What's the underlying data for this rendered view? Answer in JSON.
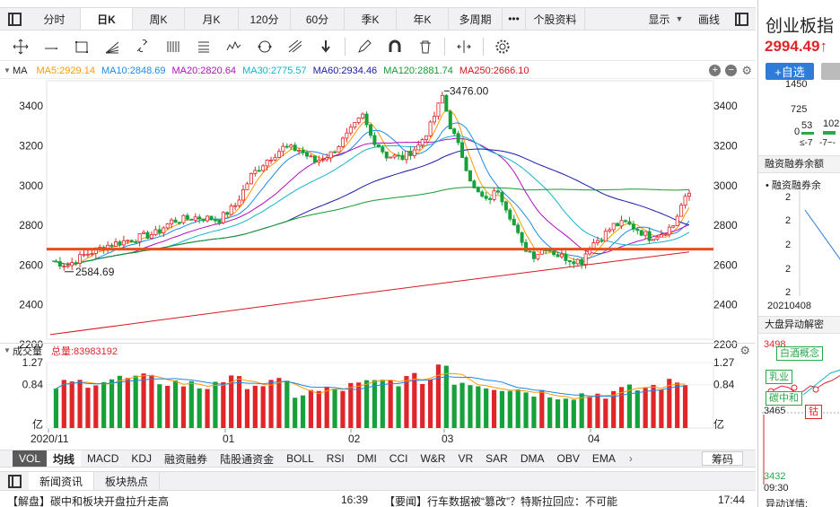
{
  "top_tabs": [
    {
      "label": "分时"
    },
    {
      "label": "日K",
      "active": true
    },
    {
      "label": "周K"
    },
    {
      "label": "月K"
    },
    {
      "label": "120分"
    },
    {
      "label": "60分"
    },
    {
      "label": "季K"
    },
    {
      "label": "年K"
    },
    {
      "label": "多周期"
    },
    {
      "label": "•••"
    },
    {
      "label": "个股资料"
    }
  ],
  "top_right": {
    "display_label": "显示",
    "draw_label": "画线"
  },
  "tools": [
    "crosshair-icon",
    "line-icon",
    "rect-icon",
    "fan-icon",
    "link-icon",
    "parallel-icon",
    "text-icon",
    "wave-icon",
    "circle-icon",
    "fib-icon",
    "arrow-down-icon",
    "pen-icon",
    "magnet-icon",
    "trash-icon",
    "split-icon",
    "settings-icon"
  ],
  "ma_legend": {
    "label": "MA",
    "items": [
      {
        "text": "MA5:2929.14",
        "color": "#ff9900"
      },
      {
        "text": "MA10:2848.69",
        "color": "#1e88e5"
      },
      {
        "text": "MA20:2820.64",
        "color": "#b010b8"
      },
      {
        "text": "MA30:2775.57",
        "color": "#16b4cc"
      },
      {
        "text": "MA60:2934.46",
        "color": "#1a1aa8"
      },
      {
        "text": "MA120:2881.74",
        "color": "#169c2e"
      },
      {
        "text": "MA250:2666.10",
        "color": "#d4181f"
      }
    ]
  },
  "price_axis": {
    "ticks": [
      "3400",
      "3200",
      "3000",
      "2800",
      "2600",
      "2400",
      "2200"
    ]
  },
  "annotations": {
    "high": "3476.00",
    "low": "2584.69"
  },
  "volume_legend": {
    "label": "成交量",
    "total": "总量:83983192"
  },
  "volume_axis": {
    "ticks": [
      "1.27",
      "0.84",
      "亿"
    ]
  },
  "x_axis": {
    "labels": [
      "2020/11",
      "01",
      "02",
      "03",
      "04"
    ]
  },
  "indicators": [
    "VOL",
    "均线",
    "MACD",
    "KDJ",
    "融资融券",
    "陆股通资金",
    "BOLL",
    "RSI",
    "DMI",
    "CCI",
    "W&R",
    "VR",
    "SAR",
    "DMA",
    "OBV",
    "EMA"
  ],
  "indicator_more": "›",
  "indicator_right": "筹码",
  "news_tabs": [
    "新闻资讯",
    "板块热点"
  ],
  "news": [
    {
      "text": "【解盘】碳中和板块开盘拉升走高",
      "time": "16:39"
    },
    {
      "text": "【要闻】行车数据被“篡改”？特斯拉回应：不可能",
      "time": "17:44"
    }
  ],
  "right_panel": {
    "title": "创业板指",
    "price": "2994.49↑",
    "add_button": "+自选",
    "fund_y": [
      "1450",
      "725",
      "0"
    ],
    "fund_vals": [
      "53",
      "102"
    ],
    "fund_ranges": [
      "≤-7",
      "-7~-"
    ],
    "margin_title": "融资融券余额",
    "margin_legend": "融资融券余",
    "margin_ticks": [
      "2",
      "2",
      "2",
      "2",
      "2"
    ],
    "margin_date": "20210408",
    "anomaly_title": "大盘异动解密",
    "anomaly_high": "3498",
    "anomaly_mid": "3465",
    "anomaly_low": "3432",
    "anomaly_time": "09:30",
    "badges": [
      {
        "text": "白酒概念",
        "color": "green"
      },
      {
        "text": "乳业",
        "color": "green"
      },
      {
        "text": "碳中和",
        "color": "green"
      },
      {
        "text": "钴",
        "color": "red"
      }
    ],
    "detail_title": "异动详情:"
  },
  "chart_data": {
    "type": "candlestick",
    "ylim": [
      2200,
      3500
    ],
    "support_line": 2680,
    "x_ticks": [
      "2020/11",
      "01",
      "02",
      "03",
      "04"
    ],
    "ma_series_last": {
      "MA5": 2929.14,
      "MA10": 2848.69,
      "MA20": 2820.64,
      "MA30": 2775.57,
      "MA60": 2934.46,
      "MA120": 2881.74,
      "MA250": 2666.1
    },
    "high": 3476.0,
    "low": 2584.69,
    "volume_total": 83983192,
    "volume_ylim": [
      0,
      1.27
    ]
  }
}
